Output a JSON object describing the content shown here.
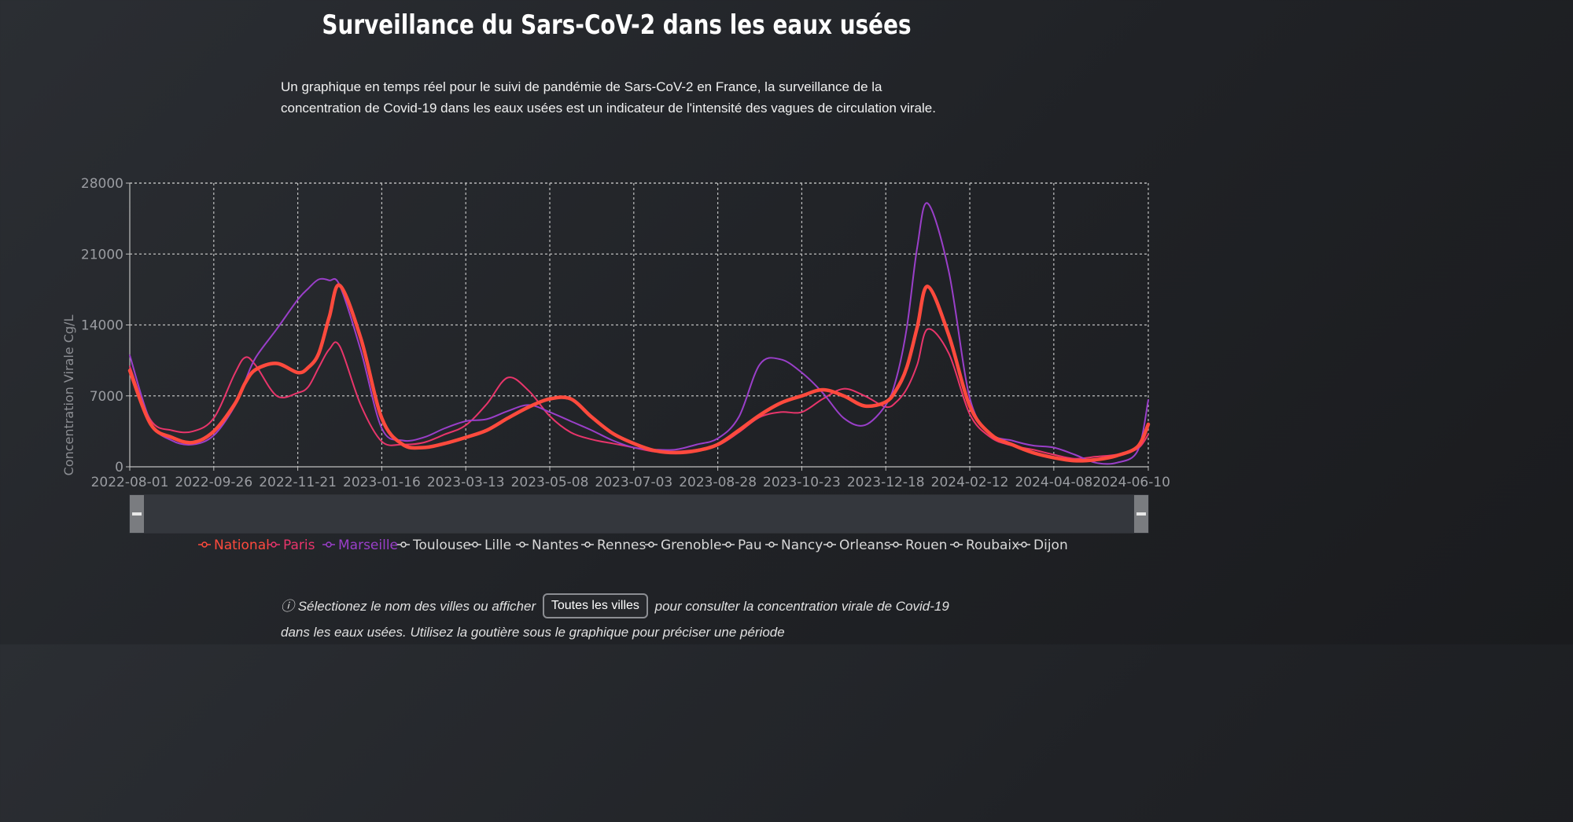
{
  "page": {
    "title": "Surveillance du Sars-CoV-2 dans les eaux usées",
    "description": "Un graphique en temps réel pour le suivi de pandémie de Sars-CoV-2 en France, la surveillance de la concentration de Covid-19 dans les eaux usées est un indicateur de l'intensité des vagues de circulation virale.",
    "footer_before": "ⓘ Sélectionez le nom des villes ou afficher",
    "footer_button": "Toutes les villes",
    "footer_after": "pour consulter la concentration virale de Covid-19 dans les eaux usées. Utilisez la goutière sous le graphique pour préciser une période"
  },
  "colors": {
    "national": "#ff4a3d",
    "paris": "#e8356b",
    "marseille": "#9a3fc9",
    "inactive": "#d8d8d8",
    "grid": "#bfbfbf",
    "axis_text": "#9a9ca1"
  },
  "chart_data": {
    "type": "line",
    "title": "Surveillance du Sars-CoV-2 dans les eaux usées",
    "xlabel": "",
    "ylabel": "Concentration Virale Cg/L",
    "ylim": [
      0,
      28000
    ],
    "yticks": [
      0,
      7000,
      14000,
      21000,
      28000
    ],
    "x_ticks": [
      "2022-08-01",
      "2022-09-26",
      "2022-11-21",
      "2023-01-16",
      "2023-03-13",
      "2023-05-08",
      "2023-07-03",
      "2023-08-28",
      "2023-10-23",
      "2023-12-18",
      "2024-02-12",
      "2024-04-08",
      "2024-06-10"
    ],
    "x_range_weeks": [
      0,
      97
    ],
    "grid": true,
    "legend_placement": "bottom",
    "x_weeks": [
      0,
      2,
      4,
      6,
      8,
      10,
      11,
      12,
      14,
      16,
      17,
      18,
      19,
      20,
      22,
      24,
      26,
      28,
      30,
      32,
      34,
      36,
      38,
      40,
      42,
      44,
      46,
      48,
      50,
      52,
      54,
      56,
      58,
      60,
      62,
      64,
      66,
      68,
      70,
      72,
      73,
      74,
      75,
      76,
      78,
      80,
      82,
      84,
      86,
      88,
      90,
      92,
      94,
      96,
      97
    ],
    "series": [
      {
        "name": "National",
        "highlight": true,
        "values": [
          9500,
          4200,
          2900,
          2400,
          3500,
          6200,
          8300,
          9600,
          10200,
          9300,
          9800,
          11200,
          14800,
          17900,
          12700,
          4800,
          2200,
          1900,
          2300,
          2900,
          3600,
          4800,
          5900,
          6700,
          6700,
          4900,
          3300,
          2300,
          1600,
          1400,
          1600,
          2200,
          3600,
          5100,
          6300,
          7000,
          7600,
          7000,
          6000,
          6400,
          7600,
          9800,
          13800,
          17800,
          13000,
          6000,
          3200,
          2200,
          1400,
          900,
          600,
          700,
          1100,
          2000,
          4200
        ]
      },
      {
        "name": "Paris",
        "highlight": true,
        "values": [
          9900,
          4600,
          3600,
          3500,
          4800,
          9200,
          10800,
          10000,
          7000,
          7300,
          7900,
          9800,
          11600,
          11900,
          6100,
          2500,
          2200,
          2400,
          3200,
          4100,
          6200,
          8800,
          7500,
          5000,
          3400,
          2700,
          2300,
          1900,
          1500,
          1500,
          1700,
          2100,
          3400,
          4900,
          5400,
          5400,
          6700,
          7700,
          7000,
          5900,
          6400,
          7700,
          10100,
          13600,
          11200,
          5200,
          2900,
          2100,
          1700,
          1200,
          800,
          1000,
          1200,
          1800,
          3200
        ]
      },
      {
        "name": "Marseille",
        "highlight": true,
        "values": [
          11000,
          4400,
          2600,
          2200,
          3100,
          6000,
          8500,
          10800,
          13600,
          16500,
          17600,
          18500,
          18400,
          17900,
          11500,
          3800,
          2600,
          2900,
          3800,
          4500,
          4700,
          5500,
          6100,
          5400,
          4500,
          3600,
          2600,
          1900,
          1700,
          1700,
          2200,
          2800,
          4900,
          10100,
          10600,
          9300,
          7300,
          4800,
          4100,
          6100,
          8700,
          13700,
          21700,
          26000,
          19300,
          6800,
          3300,
          2600,
          2100,
          1900,
          1200,
          400,
          400,
          1600,
          6600
        ]
      },
      {
        "name": "Toulouse",
        "highlight": false,
        "values": []
      },
      {
        "name": "Lille",
        "highlight": false,
        "values": []
      },
      {
        "name": "Nantes",
        "highlight": false,
        "values": []
      },
      {
        "name": "Rennes",
        "highlight": false,
        "values": []
      },
      {
        "name": "Grenoble",
        "highlight": false,
        "values": []
      },
      {
        "name": "Pau",
        "highlight": false,
        "values": []
      },
      {
        "name": "Nancy",
        "highlight": false,
        "values": []
      },
      {
        "name": "Orleans",
        "highlight": false,
        "values": []
      },
      {
        "name": "Rouen",
        "highlight": false,
        "values": []
      },
      {
        "name": "Roubaix",
        "highlight": false,
        "values": []
      },
      {
        "name": "Dijon",
        "highlight": false,
        "values": []
      }
    ]
  },
  "slider": {
    "start_fraction": 0,
    "end_fraction": 1
  }
}
